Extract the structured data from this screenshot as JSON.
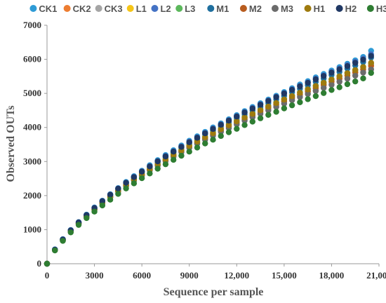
{
  "chart_data": {
    "type": "scatter",
    "xlabel": "Sequence per sample",
    "ylabel": "Observed OUTs",
    "xlim": [
      0,
      21000
    ],
    "ylim": [
      0,
      7000
    ],
    "x_ticks": [
      "0",
      "3000",
      "6000",
      "9000",
      "12,000",
      "15,000",
      "18,000",
      "21,000"
    ],
    "y_ticks": [
      "0",
      "1000",
      "2000",
      "3000",
      "4000",
      "5000",
      "6000",
      "7000"
    ],
    "legend_position": "top",
    "grid": false,
    "x": [
      0,
      500,
      1000,
      1500,
      2000,
      2500,
      3000,
      3500,
      4000,
      4500,
      5000,
      5500,
      6000,
      6500,
      7000,
      7500,
      8000,
      8500,
      9000,
      9500,
      10000,
      10500,
      11000,
      11500,
      12000,
      12500,
      13000,
      13500,
      14000,
      14500,
      15000,
      15500,
      16000,
      16500,
      17000,
      17500,
      18000,
      18500,
      19000,
      19500,
      20000,
      20500
    ],
    "series": [
      {
        "name": "CK1",
        "color": "#2e9bd6",
        "values": [
          0,
          420,
          720,
          990,
          1220,
          1440,
          1650,
          1850,
          2040,
          2220,
          2400,
          2570,
          2730,
          2890,
          3040,
          3190,
          3330,
          3470,
          3610,
          3740,
          3870,
          4000,
          4120,
          4240,
          4360,
          4480,
          4600,
          4710,
          4820,
          4930,
          5040,
          5150,
          5260,
          5360,
          5470,
          5570,
          5670,
          5770,
          5870,
          5970,
          6070,
          6250
        ]
      },
      {
        "name": "CK2",
        "color": "#ed7d31",
        "values": [
          0,
          400,
          690,
          950,
          1180,
          1390,
          1590,
          1780,
          1960,
          2130,
          2300,
          2460,
          2610,
          2760,
          2900,
          3040,
          3170,
          3300,
          3430,
          3550,
          3670,
          3790,
          3910,
          4020,
          4130,
          4240,
          4350,
          4460,
          4560,
          4660,
          4760,
          4860,
          4960,
          5060,
          5160,
          5250,
          5340,
          5430,
          5520,
          5610,
          5700,
          5800
        ]
      },
      {
        "name": "CK3",
        "color": "#a5a5a5",
        "values": [
          0,
          395,
          680,
          940,
          1170,
          1380,
          1580,
          1770,
          1950,
          2120,
          2280,
          2440,
          2590,
          2740,
          2880,
          3020,
          3150,
          3280,
          3410,
          3530,
          3650,
          3770,
          3880,
          3990,
          4100,
          4210,
          4310,
          4410,
          4510,
          4610,
          4710,
          4810,
          4910,
          5000,
          5090,
          5180,
          5270,
          5360,
          5450,
          5540,
          5630,
          5720
        ]
      },
      {
        "name": "L1",
        "color": "#f5c518",
        "values": [
          0,
          405,
          700,
          960,
          1190,
          1400,
          1600,
          1790,
          1970,
          2140,
          2310,
          2470,
          2630,
          2780,
          2920,
          3060,
          3200,
          3330,
          3460,
          3590,
          3710,
          3830,
          3950,
          4070,
          4180,
          4290,
          4400,
          4510,
          4610,
          4720,
          4820,
          4920,
          5020,
          5120,
          5220,
          5320,
          5410,
          5510,
          5600,
          5690,
          5780,
          5880
        ]
      },
      {
        "name": "L2",
        "color": "#4472c4",
        "values": [
          0,
          415,
          715,
          980,
          1215,
          1430,
          1640,
          1840,
          2030,
          2210,
          2380,
          2550,
          2710,
          2860,
          3010,
          3160,
          3300,
          3440,
          3580,
          3710,
          3840,
          3970,
          4090,
          4210,
          4330,
          4450,
          4570,
          4680,
          4790,
          4900,
          5010,
          5120,
          5220,
          5320,
          5430,
          5530,
          5630,
          5730,
          5830,
          5930,
          6020,
          6150
        ]
      },
      {
        "name": "L3",
        "color": "#5cb85c",
        "values": [
          0,
          400,
          695,
          955,
          1185,
          1400,
          1605,
          1800,
          1985,
          2160,
          2330,
          2490,
          2650,
          2800,
          2950,
          3090,
          3230,
          3360,
          3490,
          3620,
          3740,
          3860,
          3980,
          4100,
          4210,
          4320,
          4430,
          4540,
          4640,
          4740,
          4840,
          4940,
          5040,
          5140,
          5230,
          5330,
          5420,
          5510,
          5600,
          5690,
          5780,
          5870
        ]
      },
      {
        "name": "M1",
        "color": "#1f6f9e",
        "values": [
          0,
          410,
          710,
          975,
          1210,
          1425,
          1630,
          1830,
          2015,
          2195,
          2365,
          2530,
          2690,
          2840,
          2990,
          3130,
          3270,
          3410,
          3540,
          3670,
          3800,
          3920,
          4040,
          4160,
          4280,
          4390,
          4500,
          4610,
          4720,
          4830,
          4930,
          5040,
          5140,
          5240,
          5340,
          5440,
          5540,
          5630,
          5730,
          5820,
          5920,
          6050
        ]
      },
      {
        "name": "M2",
        "color": "#b85c1e",
        "values": [
          0,
          398,
          690,
          950,
          1180,
          1390,
          1590,
          1785,
          1965,
          2135,
          2300,
          2460,
          2610,
          2760,
          2900,
          3040,
          3170,
          3300,
          3430,
          3550,
          3680,
          3800,
          3910,
          4030,
          4140,
          4250,
          4360,
          4460,
          4570,
          4670,
          4770,
          4870,
          4970,
          5060,
          5160,
          5250,
          5350,
          5440,
          5530,
          5620,
          5710,
          5820
        ]
      },
      {
        "name": "M3",
        "color": "#6b6b6b",
        "values": [
          0,
          395,
          685,
          945,
          1170,
          1380,
          1580,
          1770,
          1950,
          2120,
          2280,
          2440,
          2590,
          2740,
          2880,
          3010,
          3140,
          3270,
          3400,
          3520,
          3640,
          3760,
          3870,
          3980,
          4090,
          4200,
          4300,
          4400,
          4500,
          4600,
          4700,
          4800,
          4890,
          4980,
          5070,
          5160,
          5250,
          5340,
          5430,
          5520,
          5610,
          5700
        ]
      },
      {
        "name": "H1",
        "color": "#9e7a0e",
        "values": [
          0,
          402,
          698,
          958,
          1188,
          1398,
          1598,
          1792,
          1972,
          2142,
          2312,
          2472,
          2626,
          2776,
          2920,
          3060,
          3196,
          3328,
          3458,
          3586,
          3710,
          3832,
          3950,
          4066,
          4180,
          4290,
          4400,
          4508,
          4612,
          4716,
          4818,
          4918,
          5018,
          5116,
          5214,
          5310,
          5404,
          5498,
          5590,
          5682,
          5772,
          5900
        ]
      },
      {
        "name": "H2",
        "color": "#203864",
        "values": [
          0,
          412,
          712,
          978,
          1212,
          1428,
          1636,
          1836,
          2024,
          2204,
          2376,
          2542,
          2702,
          2856,
          3006,
          3150,
          3292,
          3430,
          3566,
          3698,
          3828,
          3956,
          4080,
          4202,
          4322,
          4440,
          4556,
          4668,
          4780,
          4890,
          4998,
          5104,
          5208,
          5310,
          5412,
          5512,
          5610,
          5706,
          5802,
          5896,
          5990,
          6100
        ]
      },
      {
        "name": "H3",
        "color": "#2e7d32",
        "values": [
          0,
          390,
          670,
          920,
          1140,
          1340,
          1530,
          1710,
          1880,
          2050,
          2210,
          2360,
          2510,
          2650,
          2790,
          2920,
          3050,
          3170,
          3290,
          3410,
          3530,
          3640,
          3750,
          3860,
          3960,
          4070,
          4170,
          4270,
          4370,
          4460,
          4560,
          4650,
          4740,
          4830,
          4920,
          5010,
          5100,
          5180,
          5270,
          5350,
          5440,
          5600
        ]
      }
    ]
  }
}
